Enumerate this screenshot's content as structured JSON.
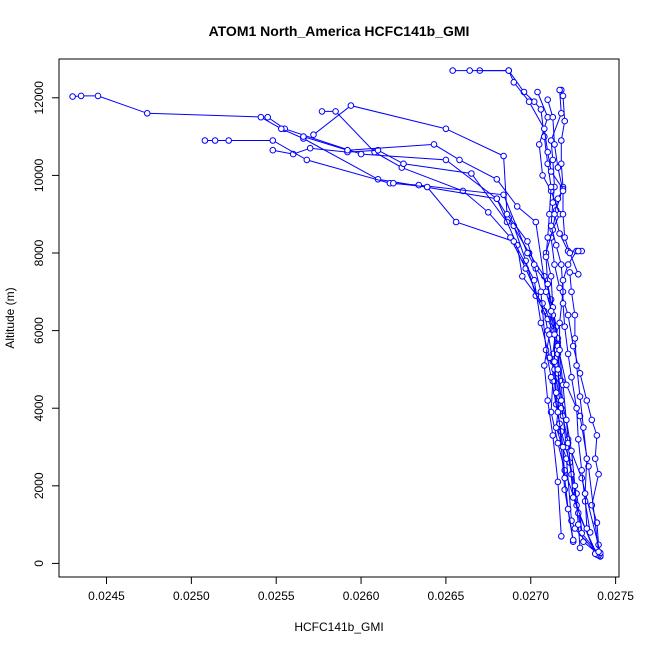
{
  "chart_data": {
    "type": "line",
    "title": "ATOM1 North_America HCFC141b_GMI",
    "xlabel": "HCFC141b_GMI",
    "ylabel": "Altitude (m)",
    "xlim": [
      0.02422,
      0.02752
    ],
    "ylim": [
      -350,
      13000
    ],
    "x_ticks": [
      0.0245,
      0.025,
      0.0255,
      0.026,
      0.0265,
      0.027,
      0.0275
    ],
    "x_tick_labels": [
      "0.0245",
      "0.0250",
      "0.0255",
      "0.0260",
      "0.0265",
      "0.0270",
      "0.0275"
    ],
    "y_ticks": [
      0,
      2000,
      4000,
      6000,
      8000,
      10000,
      12000
    ],
    "y_tick_labels": [
      "0",
      "2000",
      "4000",
      "6000",
      "8000",
      "10000",
      "12000"
    ],
    "grid": false,
    "marker": "open-circle",
    "line_color": "#0000ff",
    "series": [
      {
        "points": [
          [
            0.02741,
            180
          ],
          [
            0.0274,
            480
          ],
          [
            0.02739,
            1050
          ],
          [
            0.02736,
            1500
          ],
          [
            0.0274,
            2300
          ],
          [
            0.02738,
            2700
          ],
          [
            0.02739,
            3300
          ],
          [
            0.02736,
            3700
          ],
          [
            0.02733,
            4200
          ],
          [
            0.02729,
            4900
          ],
          [
            0.02725,
            5600
          ],
          [
            0.02722,
            6400
          ],
          [
            0.02717,
            7100
          ],
          [
            0.02714,
            7700
          ],
          [
            0.02712,
            8400
          ],
          [
            0.02715,
            9100
          ],
          [
            0.02719,
            9700
          ],
          [
            0.02718,
            10300
          ],
          [
            0.02718,
            10900
          ],
          [
            0.0272,
            11400
          ],
          [
            0.02719,
            12050
          ],
          [
            0.02718,
            12200
          ]
        ]
      },
      {
        "points": [
          [
            0.02741,
            200
          ],
          [
            0.02731,
            560
          ],
          [
            0.02727,
            1800
          ],
          [
            0.02723,
            2600
          ],
          [
            0.02718,
            3400
          ],
          [
            0.02715,
            4100
          ],
          [
            0.02714,
            4700
          ],
          [
            0.02713,
            5400
          ],
          [
            0.02715,
            6100
          ],
          [
            0.02712,
            6800
          ],
          [
            0.02708,
            7400
          ],
          [
            0.02699,
            8000
          ],
          [
            0.02687,
            8900
          ],
          [
            0.0268,
            9400
          ],
          [
            0.0265,
            10400
          ],
          [
            0.026,
            10550
          ],
          [
            0.02555,
            11200
          ],
          [
            0.02545,
            11500
          ],
          [
            0.02474,
            11600
          ],
          [
            0.02445,
            12050
          ],
          [
            0.02435,
            12050
          ],
          [
            0.0243,
            12030
          ]
        ]
      },
      {
        "points": [
          [
            0.02741,
            190
          ],
          [
            0.0273,
            780
          ],
          [
            0.02727,
            1500
          ],
          [
            0.0272,
            2400
          ],
          [
            0.02716,
            3100
          ],
          [
            0.02712,
            3900
          ],
          [
            0.02713,
            4700
          ],
          [
            0.02713,
            5200
          ],
          [
            0.0271,
            6000
          ],
          [
            0.02708,
            6500
          ],
          [
            0.02697,
            7600
          ],
          [
            0.02688,
            8400
          ],
          [
            0.02675,
            9050
          ],
          [
            0.0266,
            9600
          ],
          [
            0.02624,
            10200
          ],
          [
            0.02608,
            10600
          ],
          [
            0.02585,
            11650
          ],
          [
            0.02577,
            11650
          ]
        ]
      },
      {
        "points": [
          [
            0.0274,
            210
          ],
          [
            0.02726,
            900
          ],
          [
            0.02724,
            1100
          ],
          [
            0.02721,
            2700
          ],
          [
            0.02715,
            3500
          ],
          [
            0.02717,
            4300
          ],
          [
            0.02716,
            4900
          ],
          [
            0.02716,
            5700
          ],
          [
            0.0271,
            6300
          ],
          [
            0.02703,
            6900
          ],
          [
            0.02697,
            7800
          ],
          [
            0.0269,
            8700
          ],
          [
            0.02686,
            8800
          ],
          [
            0.02665,
            10050
          ],
          [
            0.02625,
            10300
          ],
          [
            0.0261,
            10650
          ],
          [
            0.02592,
            10600
          ],
          [
            0.0257,
            10700
          ],
          [
            0.0256,
            10550
          ],
          [
            0.02548,
            10650
          ]
        ]
      },
      {
        "points": [
          [
            0.02739,
            230
          ],
          [
            0.02728,
            1300
          ],
          [
            0.02724,
            2300
          ],
          [
            0.02721,
            3000
          ],
          [
            0.02719,
            3800
          ],
          [
            0.02718,
            4700
          ],
          [
            0.02716,
            5400
          ],
          [
            0.02714,
            6000
          ],
          [
            0.02707,
            6700
          ],
          [
            0.02695,
            7400
          ],
          [
            0.02692,
            8200
          ],
          [
            0.0268,
            9400
          ],
          [
            0.0261,
            9900
          ],
          [
            0.02566,
            10950
          ],
          [
            0.02553,
            11200
          ],
          [
            0.02541,
            11500
          ]
        ]
      },
      {
        "points": [
          [
            0.02738,
            250
          ],
          [
            0.02725,
            1700
          ],
          [
            0.02722,
            3200
          ],
          [
            0.02719,
            4600
          ],
          [
            0.02716,
            5800
          ],
          [
            0.0271,
            7200
          ],
          [
            0.02703,
            7600
          ],
          [
            0.02698,
            8000
          ],
          [
            0.02684,
            9500
          ],
          [
            0.02634,
            9750
          ],
          [
            0.02617,
            9800
          ],
          [
            0.02568,
            10400
          ],
          [
            0.02548,
            10900
          ],
          [
            0.02522,
            10900
          ],
          [
            0.02514,
            10900
          ],
          [
            0.02508,
            10900
          ]
        ]
      },
      {
        "points": [
          [
            0.02741,
            270
          ],
          [
            0.0273,
            2200
          ],
          [
            0.02722,
            3100
          ],
          [
            0.02718,
            4000
          ],
          [
            0.02714,
            5000
          ],
          [
            0.02711,
            5300
          ],
          [
            0.02706,
            6200
          ],
          [
            0.02702,
            7300
          ],
          [
            0.0269,
            8300
          ],
          [
            0.02656,
            8800
          ],
          [
            0.02639,
            9700
          ],
          [
            0.02619,
            9800
          ]
        ]
      },
      {
        "points": [
          [
            0.0274,
            300
          ],
          [
            0.02734,
            2500
          ],
          [
            0.02729,
            3800
          ],
          [
            0.02721,
            4600
          ],
          [
            0.02716,
            5600
          ],
          [
            0.02713,
            6400
          ],
          [
            0.02709,
            7000
          ],
          [
            0.02703,
            8800
          ],
          [
            0.02692,
            9200
          ],
          [
            0.0268,
            9900
          ],
          [
            0.02658,
            10400
          ],
          [
            0.02643,
            10800
          ],
          [
            0.02592,
            10650
          ],
          [
            0.02566,
            11000
          ]
        ]
      },
      {
        "points": [
          [
            0.02725,
            560
          ],
          [
            0.0272,
            1900
          ],
          [
            0.02717,
            3600
          ],
          [
            0.02712,
            4800
          ],
          [
            0.02709,
            5500
          ],
          [
            0.02706,
            7000
          ],
          [
            0.02702,
            7700
          ],
          [
            0.02698,
            8300
          ],
          [
            0.02686,
            9000
          ],
          [
            0.02684,
            10500
          ],
          [
            0.0265,
            11200
          ],
          [
            0.02594,
            11800
          ],
          [
            0.02572,
            11050
          ]
        ]
      },
      {
        "points": [
          [
            0.02718,
            700
          ],
          [
            0.02716,
            2100
          ],
          [
            0.02713,
            3300
          ],
          [
            0.0271,
            4200
          ],
          [
            0.02708,
            5100
          ],
          [
            0.02711,
            5900
          ],
          [
            0.02713,
            6600
          ],
          [
            0.02712,
            7400
          ],
          [
            0.02709,
            8000
          ],
          [
            0.02713,
            8600
          ],
          [
            0.02717,
            9000
          ],
          [
            0.02712,
            9600
          ],
          [
            0.02707,
            10000
          ],
          [
            0.02705,
            10800
          ],
          [
            0.0271,
            11500
          ],
          [
            0.02704,
            12150
          ]
        ]
      },
      {
        "points": [
          [
            0.02729,
            400
          ],
          [
            0.02728,
            1000
          ],
          [
            0.02726,
            2000
          ],
          [
            0.02724,
            2900
          ],
          [
            0.02721,
            3700
          ],
          [
            0.02718,
            4200
          ],
          [
            0.02716,
            5000
          ],
          [
            0.02717,
            5500
          ],
          [
            0.02717,
            6200
          ],
          [
            0.02719,
            7000
          ],
          [
            0.02718,
            7700
          ],
          [
            0.02715,
            8200
          ],
          [
            0.02712,
            8700
          ],
          [
            0.02713,
            9300
          ],
          [
            0.02714,
            9700
          ],
          [
            0.02713,
            10400
          ],
          [
            0.02712,
            10900
          ],
          [
            0.02718,
            11600
          ],
          [
            0.02717,
            12200
          ]
        ]
      },
      {
        "points": [
          [
            0.02725,
            600
          ],
          [
            0.02722,
            1400
          ],
          [
            0.0272,
            2200
          ],
          [
            0.02719,
            3000
          ],
          [
            0.02716,
            3900
          ],
          [
            0.02715,
            4400
          ],
          [
            0.02714,
            5200
          ],
          [
            0.02714,
            5900
          ],
          [
            0.02712,
            6500
          ],
          [
            0.0271,
            7200
          ],
          [
            0.02709,
            7900
          ],
          [
            0.0271,
            8400
          ],
          [
            0.02711,
            9000
          ],
          [
            0.02712,
            9700
          ],
          [
            0.0271,
            10300
          ],
          [
            0.02708,
            11000
          ],
          [
            0.02706,
            11700
          ],
          [
            0.02702,
            11900
          ],
          [
            0.02696,
            12150
          ],
          [
            0.02687,
            12700
          ],
          [
            0.0267,
            12700
          ]
        ]
      },
      {
        "points": [
          [
            0.02735,
            800
          ],
          [
            0.02732,
            1600
          ],
          [
            0.0273,
            2400
          ],
          [
            0.02728,
            3200
          ],
          [
            0.02727,
            4000
          ],
          [
            0.02724,
            4800
          ],
          [
            0.02722,
            5400
          ],
          [
            0.0272,
            6100
          ],
          [
            0.02719,
            6700
          ],
          [
            0.02719,
            7300
          ],
          [
            0.02722,
            7700
          ],
          [
            0.02727,
            8050
          ],
          [
            0.0273,
            8050
          ],
          [
            0.02728,
            8050
          ],
          [
            0.02722,
            8050
          ],
          [
            0.02717,
            8500
          ],
          [
            0.02714,
            9000
          ],
          [
            0.02716,
            9400
          ],
          [
            0.02719,
            9650
          ],
          [
            0.02712,
            10100
          ],
          [
            0.0271,
            10600
          ],
          [
            0.02708,
            11200
          ],
          [
            0.02699,
            11900
          ],
          [
            0.0269,
            12400
          ],
          [
            0.02687,
            12700
          ],
          [
            0.02664,
            12700
          ],
          [
            0.02654,
            12700
          ]
        ]
      },
      {
        "points": [
          [
            0.02733,
            900
          ],
          [
            0.02732,
            1800
          ],
          [
            0.02733,
            2700
          ],
          [
            0.02731,
            3500
          ],
          [
            0.02729,
            4300
          ],
          [
            0.02727,
            5100
          ],
          [
            0.02726,
            5800
          ],
          [
            0.02726,
            6400
          ],
          [
            0.02724,
            7000
          ],
          [
            0.02723,
            7500
          ],
          [
            0.02728,
            7450
          ],
          [
            0.02723,
            8000
          ],
          [
            0.0272,
            8400
          ],
          [
            0.02719,
            9000
          ],
          [
            0.02719,
            9600
          ],
          [
            0.02716,
            10200
          ],
          [
            0.02714,
            10800
          ],
          [
            0.02713,
            11500
          ],
          [
            0.0271,
            11950
          ]
        ]
      }
    ]
  }
}
